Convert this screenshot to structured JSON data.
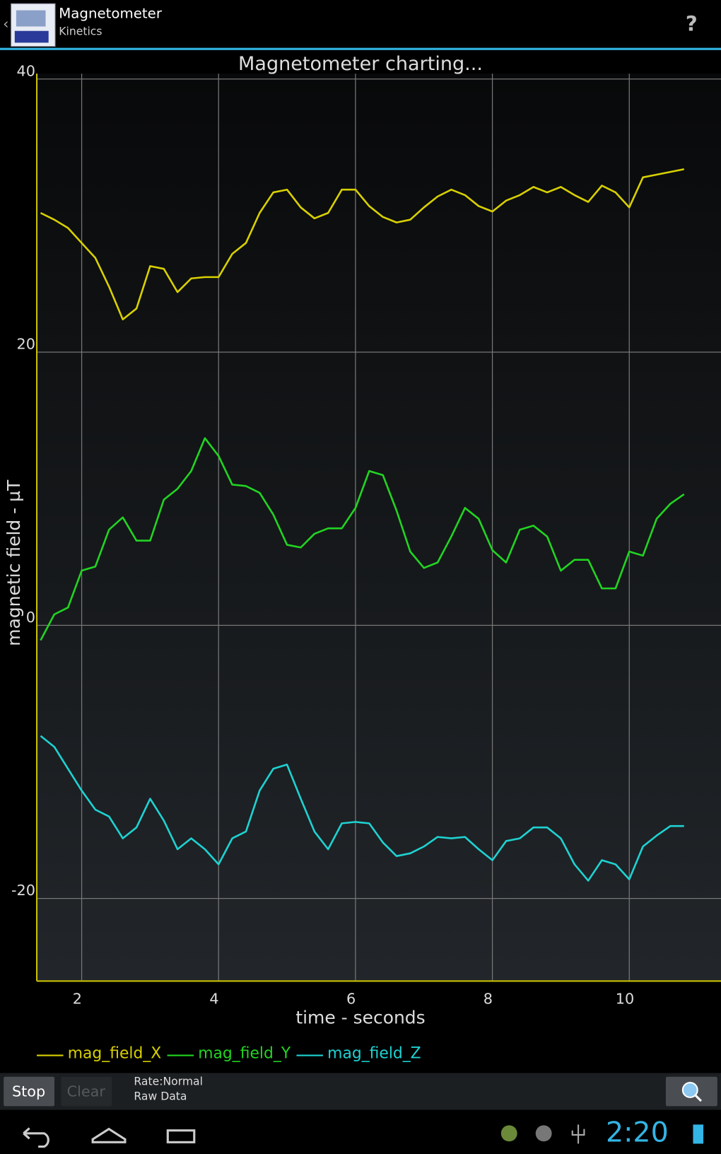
{
  "app_bar": {
    "title": "Magnetometer",
    "subtitle": "Kinetics",
    "help": "?"
  },
  "chart_data": {
    "type": "line",
    "title": "Magnetometer charting...",
    "x_label": "time - seconds",
    "y_label": "magnetic field - µT",
    "x": [
      1.4,
      1.6,
      1.8,
      2.0,
      2.2,
      2.4,
      2.6,
      2.8,
      3.0,
      3.2,
      3.4,
      3.6,
      3.8,
      4.0,
      4.2,
      4.4,
      4.6,
      4.8,
      5.0,
      5.2,
      5.4,
      5.6,
      5.8,
      6.0,
      6.2,
      6.4,
      6.6,
      6.8,
      7.0,
      7.2,
      7.4,
      7.6,
      7.8,
      8.0,
      8.2,
      8.4,
      8.6,
      8.8,
      9.0,
      9.2,
      9.4,
      9.6,
      9.8,
      10.0,
      10.2,
      10.4,
      10.6,
      10.8
    ],
    "series": [
      {
        "name": "mag_field_X",
        "color": "#d8d000",
        "values": [
          30.2,
          29.7,
          29.1,
          28.0,
          26.9,
          24.8,
          22.4,
          23.2,
          26.3,
          26.1,
          24.4,
          25.4,
          25.5,
          25.5,
          27.2,
          28.0,
          30.2,
          31.7,
          31.9,
          30.6,
          29.8,
          30.2,
          31.9,
          31.9,
          30.7,
          29.9,
          29.5,
          29.7,
          30.6,
          31.4,
          31.9,
          31.5,
          30.7,
          30.3,
          31.1,
          31.5,
          32.1,
          31.7,
          32.1,
          31.5,
          31.0,
          32.2,
          31.7,
          30.6,
          32.8,
          33.0,
          33.2,
          33.4
        ]
      },
      {
        "name": "mag_field_Y",
        "color": "#22d422",
        "values": [
          -1.1,
          0.8,
          1.3,
          4.0,
          4.3,
          7.0,
          7.9,
          6.2,
          6.2,
          9.2,
          10.0,
          11.3,
          13.7,
          12.4,
          10.3,
          10.2,
          9.7,
          8.1,
          5.9,
          5.7,
          6.7,
          7.1,
          7.1,
          8.6,
          11.3,
          11.0,
          8.4,
          5.4,
          4.2,
          4.6,
          6.5,
          8.6,
          7.8,
          5.5,
          4.6,
          7.0,
          7.3,
          6.5,
          4.0,
          4.8,
          4.8,
          2.7,
          2.7,
          5.4,
          5.1,
          7.8,
          8.9,
          9.6
        ]
      },
      {
        "name": "mag_field_Z",
        "color": "#1ed2d2",
        "values": [
          -8.1,
          -8.9,
          -10.5,
          -12.1,
          -13.5,
          -14.0,
          -15.6,
          -14.8,
          -12.7,
          -14.3,
          -16.4,
          -15.6,
          -16.4,
          -17.5,
          -15.6,
          -15.1,
          -12.1,
          -10.5,
          -10.2,
          -12.7,
          -15.1,
          -16.4,
          -14.5,
          -14.4,
          -14.5,
          -15.9,
          -16.9,
          -16.7,
          -16.2,
          -15.5,
          -15.6,
          -15.5,
          -16.4,
          -17.2,
          -15.8,
          -15.6,
          -14.8,
          -14.8,
          -15.6,
          -17.5,
          -18.7,
          -17.2,
          -17.5,
          -18.6,
          -16.2,
          -15.4,
          -14.7,
          -14.7
        ]
      }
    ],
    "xlim": [
      1.344,
      11.34
    ],
    "ylim": [
      -26.05,
      40.4
    ],
    "xticks": [
      2,
      4,
      6,
      8,
      10
    ],
    "yticks": [
      -20,
      0,
      20,
      40
    ],
    "grid": true
  },
  "controls": {
    "stop": "Stop",
    "clear": "Clear",
    "rate": "Rate:Normal",
    "mode": "Raw Data"
  },
  "status_bar": {
    "time": "2:20"
  }
}
